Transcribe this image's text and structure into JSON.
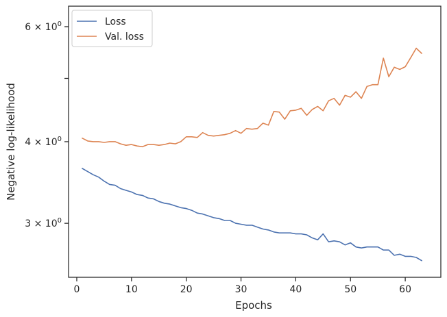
{
  "chart_data": {
    "type": "line",
    "title": "",
    "xlabel": "Epochs",
    "ylabel": "Negative log-likelihood",
    "xlim": [
      -1.5,
      66.5
    ],
    "ylim": [
      2.48,
      6.45
    ],
    "yscale": "log",
    "grid": false,
    "legend_position": "top-left",
    "x_ticks": [
      0,
      10,
      20,
      30,
      40,
      50,
      60
    ],
    "y_ticks": [
      {
        "value": 3,
        "label": "3 × 10⁰",
        "base": "3 × 10",
        "exp": "0"
      },
      {
        "value": 4,
        "label": "4 × 10⁰",
        "base": "4 × 10",
        "exp": "0"
      },
      {
        "value": 5,
        "label": ""
      },
      {
        "value": 6,
        "label": "6 × 10⁰",
        "base": "6 × 10",
        "exp": "0"
      }
    ],
    "x": [
      1,
      2,
      3,
      4,
      5,
      6,
      7,
      8,
      9,
      10,
      11,
      12,
      13,
      14,
      15,
      16,
      17,
      18,
      19,
      20,
      21,
      22,
      23,
      24,
      25,
      26,
      27,
      28,
      29,
      30,
      31,
      32,
      33,
      34,
      35,
      36,
      37,
      38,
      39,
      40,
      41,
      42,
      43,
      44,
      45,
      46,
      47,
      48,
      49,
      50,
      51,
      52,
      53,
      54,
      55,
      56,
      57,
      58,
      59,
      60,
      61,
      62,
      63
    ],
    "series": [
      {
        "name": "Loss",
        "color": "#4c72b0",
        "values": [
          3.64,
          3.6,
          3.56,
          3.53,
          3.48,
          3.44,
          3.43,
          3.39,
          3.37,
          3.35,
          3.32,
          3.31,
          3.28,
          3.27,
          3.24,
          3.22,
          3.21,
          3.19,
          3.17,
          3.16,
          3.14,
          3.11,
          3.1,
          3.08,
          3.06,
          3.05,
          3.03,
          3.03,
          3.0,
          2.99,
          2.98,
          2.98,
          2.96,
          2.94,
          2.93,
          2.91,
          2.9,
          2.9,
          2.9,
          2.89,
          2.89,
          2.88,
          2.85,
          2.83,
          2.89,
          2.81,
          2.82,
          2.81,
          2.78,
          2.8,
          2.76,
          2.75,
          2.76,
          2.76,
          2.76,
          2.73,
          2.73,
          2.68,
          2.69,
          2.67,
          2.67,
          2.66,
          2.63
        ]
      },
      {
        "name": "Val. loss",
        "color": "#dd8452",
        "values": [
          4.05,
          4.01,
          4.0,
          4.0,
          3.99,
          4.0,
          4.0,
          3.97,
          3.95,
          3.96,
          3.94,
          3.93,
          3.96,
          3.96,
          3.95,
          3.96,
          3.98,
          3.97,
          4.0,
          4.07,
          4.07,
          4.06,
          4.13,
          4.09,
          4.08,
          4.09,
          4.1,
          4.12,
          4.16,
          4.12,
          4.19,
          4.18,
          4.19,
          4.27,
          4.24,
          4.45,
          4.44,
          4.33,
          4.46,
          4.47,
          4.5,
          4.39,
          4.48,
          4.53,
          4.46,
          4.62,
          4.66,
          4.55,
          4.71,
          4.68,
          4.77,
          4.66,
          4.86,
          4.89,
          4.89,
          5.37,
          5.03,
          5.2,
          5.16,
          5.21,
          5.38,
          5.56,
          5.46
        ]
      }
    ]
  }
}
